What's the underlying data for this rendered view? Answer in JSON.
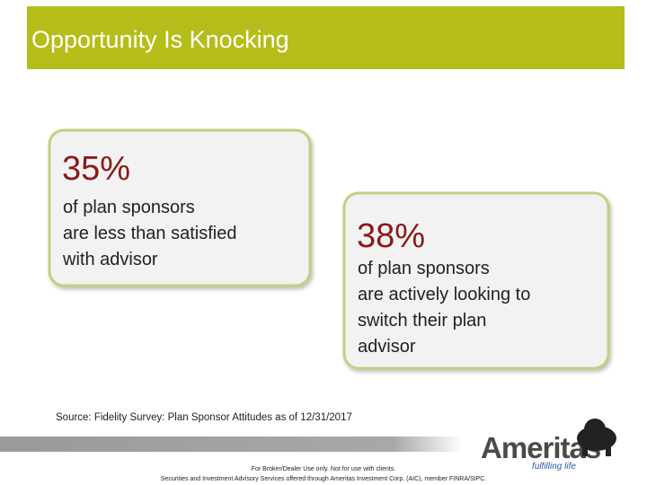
{
  "header": {
    "title": "Opportunity Is Knocking"
  },
  "callouts": [
    {
      "stat": "35%",
      "lines": [
        "of plan sponsors",
        "are less than satisfied",
        "with advisor"
      ]
    },
    {
      "stat": "38%",
      "lines": [
        "of plan sponsors",
        "are actively looking to",
        "switch their plan",
        "advisor"
      ]
    }
  ],
  "source": "Source: Fidelity Survey: Plan Sponsor Attitudes as of 12/31/2017",
  "logo": {
    "name": "Ameritas",
    "tagline": "fulfilling life"
  },
  "footer": [
    "For Broker/Dealer Use only. Not for use with clients.",
    "Securities and Investment Advisory Services offered through Ameritas Investment Corp. (AIC), member FINRA/SIPC."
  ]
}
